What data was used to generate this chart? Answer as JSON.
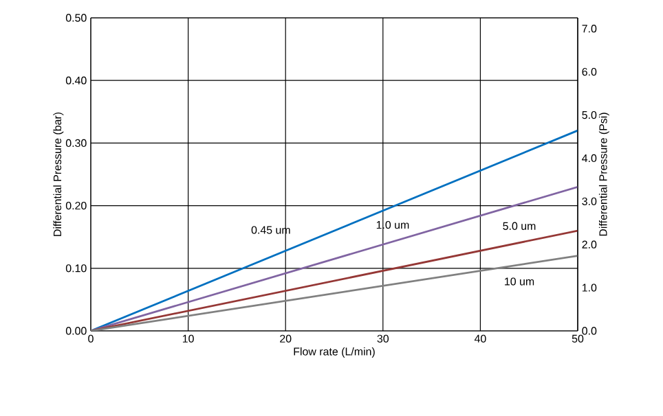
{
  "chart_data": {
    "type": "line",
    "xlabel": "Flow rate (L/min)",
    "ylabel": "Differential Pressure (bar)",
    "y2label": "Differential Pressure (Psi)",
    "x": [
      0,
      50
    ],
    "series": [
      {
        "name": "0.45 um",
        "color": "#0070c0",
        "values": [
          0,
          0.32
        ]
      },
      {
        "name": "1.0 um",
        "color": "#8064a2",
        "values": [
          0,
          0.23
        ]
      },
      {
        "name": "5.0 um",
        "color": "#953735",
        "values": [
          0,
          0.16
        ]
      },
      {
        "name": "10 um",
        "color": "#808080",
        "values": [
          0,
          0.12
        ]
      }
    ],
    "xlim": [
      0,
      50
    ],
    "xticks": [
      0,
      10,
      20,
      30,
      40,
      50
    ],
    "ylim": [
      0,
      0.5
    ],
    "yticks": [
      {
        "value": 0,
        "label": "0.00"
      },
      {
        "value": 0.1,
        "label": "0.10"
      },
      {
        "value": 0.2,
        "label": "0.20"
      },
      {
        "value": 0.3,
        "label": "0.30"
      },
      {
        "value": 0.4,
        "label": "0.40"
      },
      {
        "value": 0.5,
        "label": "0.50"
      }
    ],
    "y2lim": [
      0,
      7.25
    ],
    "y2ticks": [
      {
        "value": 0,
        "label": "0.0"
      },
      {
        "value": 1,
        "label": "1.0"
      },
      {
        "value": 2,
        "label": "2.0"
      },
      {
        "value": 3,
        "label": "3.0"
      },
      {
        "value": 4,
        "label": "4.0"
      },
      {
        "value": 5,
        "label": "5.0"
      },
      {
        "value": 6,
        "label": "6.0"
      },
      {
        "value": 7,
        "label": "7.0"
      }
    ],
    "grid": true,
    "marker": "none",
    "line_style": "solid"
  }
}
